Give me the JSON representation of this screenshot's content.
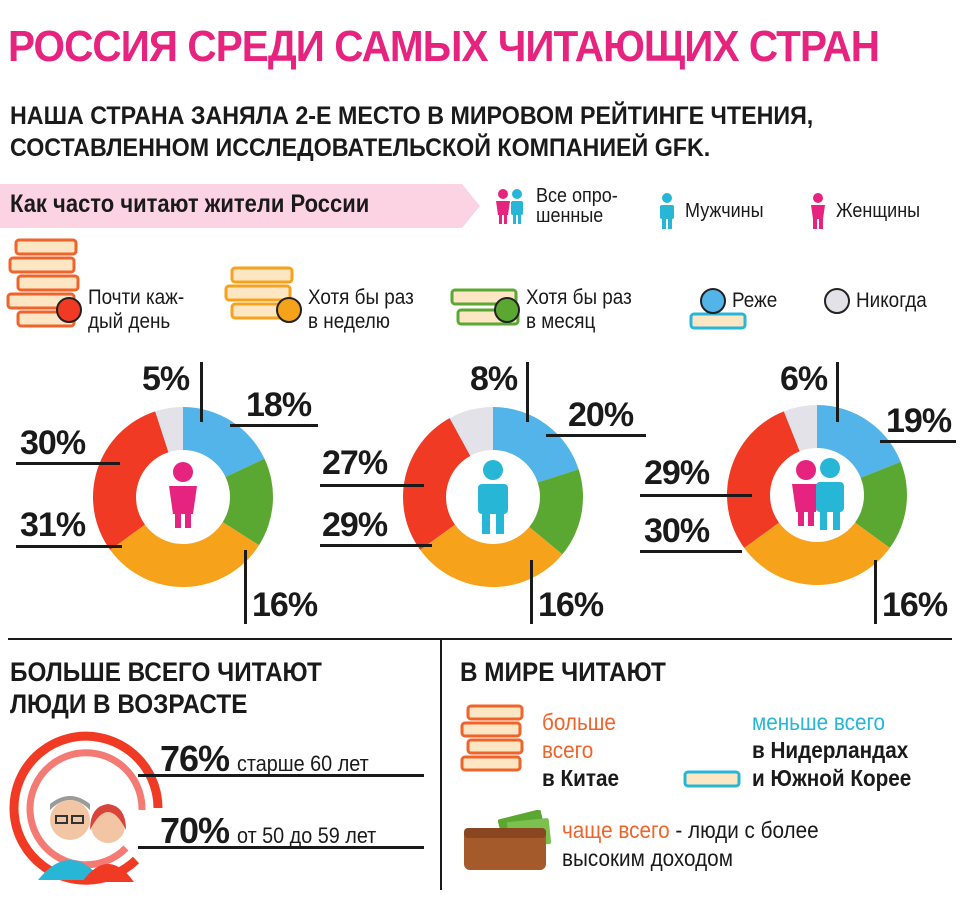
{
  "title": "РОССИЯ СРЕДИ САМЫХ ЧИТАЮЩИХ СТРАН",
  "subtitle_line1": "НАША СТРАНА ЗАНЯЛА 2-Е МЕСТО В МИРОВОМ РЕЙТИНГЕ ЧТЕНИЯ,",
  "subtitle_line2": "СОСТАВЛЕННОМ ИССЛЕДОВАТЕЛЬСКОЙ КОМПАНИЕЙ GFK.",
  "how_often": "Как часто читают жители России",
  "people_legend": {
    "all_line1": "Все опро-",
    "all_line2": "шенные",
    "men": "Мужчины",
    "women": "Женщины"
  },
  "freq_legend": {
    "daily_line1": "Почти каж-",
    "daily_line2": "дый день",
    "weekly_line1": "Хотя бы раз",
    "weekly_line2": "в неделю",
    "monthly_line1": "Хотя бы раз",
    "monthly_line2": "в месяц",
    "rarely": "Реже",
    "never": "Никогда"
  },
  "colors": {
    "daily": "#f03a24",
    "weekly": "#f7a21b",
    "monthly": "#5aa832",
    "rarely": "#52b4e8",
    "never": "#e2e2e8",
    "pink": "#e6237e",
    "cyan": "#27b6d6"
  },
  "chart_data": [
    {
      "type": "pie",
      "group": "women",
      "categories": [
        "Почти каждый день",
        "Хотя бы раз в неделю",
        "Хотя бы раз в месяц",
        "Реже",
        "Никогда"
      ],
      "values": [
        30,
        31,
        16,
        18,
        5
      ],
      "labels": [
        "30%",
        "31%",
        "16%",
        "18%",
        "5%"
      ]
    },
    {
      "type": "pie",
      "group": "men",
      "categories": [
        "Почти каждый день",
        "Хотя бы раз в неделю",
        "Хотя бы раз в месяц",
        "Реже",
        "Никогда"
      ],
      "values": [
        27,
        29,
        16,
        20,
        8
      ],
      "labels": [
        "27%",
        "29%",
        "16%",
        "20%",
        "8%"
      ]
    },
    {
      "type": "pie",
      "group": "all",
      "categories": [
        "Почти каждый день",
        "Хотя бы раз в неделю",
        "Хотя бы раз в месяц",
        "Реже",
        "Никогда"
      ],
      "values": [
        29,
        30,
        16,
        19,
        6
      ],
      "labels": [
        "29%",
        "30%",
        "16%",
        "19%",
        "6%"
      ]
    }
  ],
  "age": {
    "heading_line1": "БОЛЬШЕ ВСЕГО ЧИТАЮТ",
    "heading_line2": "ЛЮДИ В ВОЗРАСТЕ",
    "row1_pct": "76%",
    "row1_text": "старше 60 лет",
    "row2_pct": "70%",
    "row2_text": "от 50 до 59 лет"
  },
  "world": {
    "heading": "В МИРЕ ЧИТАЮТ",
    "more_line1": "больше",
    "more_line2": "всего",
    "more_line3": "в Китае",
    "less_line1": "меньше всего",
    "less_line2": "в Нидерландах",
    "less_line3": "и Южной Корее",
    "often_a": "чаще всего",
    "often_b": " - люди с более",
    "often_line2": "высоким доходом"
  }
}
